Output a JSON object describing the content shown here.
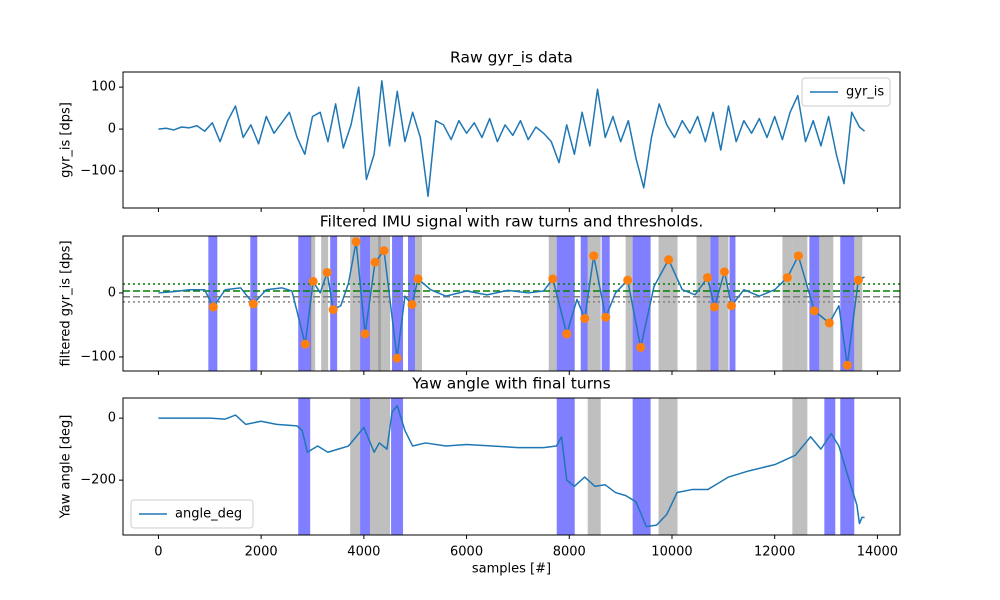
{
  "chart_data": [
    {
      "type": "line",
      "title": "Raw gyr_is data",
      "y_label": "gyr_is [dps]",
      "legend": "upper right",
      "show_xtick_labels": false,
      "xlim": [
        -690,
        14440
      ],
      "xticks": [
        0,
        2000,
        4000,
        6000,
        8000,
        10000,
        12000,
        14000
      ],
      "ylim": [
        -188,
        136
      ],
      "yticks": [
        {
          "value": -100,
          "label": "−100"
        },
        0,
        100
      ],
      "x": [
        0,
        150,
        300,
        450,
        600,
        750,
        900,
        1050,
        1200,
        1350,
        1500,
        1650,
        1800,
        1950,
        2100,
        2250,
        2400,
        2550,
        2700,
        2850,
        3000,
        3150,
        3300,
        3450,
        3600,
        3750,
        3900,
        4050,
        4200,
        4350,
        4500,
        4650,
        4800,
        4950,
        5100,
        5250,
        5400,
        5550,
        5700,
        5850,
        6000,
        6150,
        6300,
        6450,
        6600,
        6750,
        6900,
        7050,
        7200,
        7350,
        7500,
        7650,
        7800,
        7950,
        8100,
        8250,
        8400,
        8550,
        8700,
        8850,
        9000,
        9150,
        9300,
        9450,
        9600,
        9750,
        9900,
        10050,
        10200,
        10350,
        10500,
        10650,
        10800,
        10950,
        11100,
        11250,
        11400,
        11550,
        11700,
        11850,
        12000,
        12150,
        12300,
        12450,
        12600,
        12750,
        12900,
        13050,
        13200,
        13350,
        13500,
        13650,
        13750
      ],
      "series": [
        {
          "name": "gyr_is",
          "color": "#1f77b4",
          "values": [
            0,
            2,
            -2,
            5,
            3,
            8,
            -5,
            15,
            -30,
            20,
            55,
            -20,
            10,
            -35,
            30,
            -10,
            15,
            40,
            -20,
            -60,
            30,
            40,
            -30,
            60,
            -45,
            10,
            100,
            -120,
            -60,
            115,
            -40,
            90,
            -30,
            40,
            -20,
            -160,
            20,
            10,
            -25,
            20,
            -10,
            15,
            -20,
            25,
            -30,
            10,
            -15,
            20,
            -25,
            5,
            -10,
            -30,
            -80,
            10,
            -60,
            40,
            -40,
            95,
            -20,
            30,
            -30,
            20,
            -70,
            -140,
            -20,
            60,
            10,
            -20,
            20,
            -10,
            30,
            -30,
            40,
            -50,
            55,
            -30,
            20,
            -10,
            25,
            -20,
            30,
            -25,
            40,
            80,
            -30,
            20,
            -40,
            30,
            -60,
            -130,
            40,
            5,
            -5
          ]
        }
      ]
    },
    {
      "type": "line",
      "title": "Filtered IMU signal with raw turns and thresholds.",
      "y_label": "filtered gyr_is [dps]",
      "show_xtick_labels": false,
      "xlim": [
        -690,
        14440
      ],
      "xticks": [
        0,
        2000,
        4000,
        6000,
        8000,
        10000,
        12000,
        14000
      ],
      "ylim": [
        -122,
        89
      ],
      "yticks": [
        {
          "value": -100,
          "label": "−100"
        },
        0
      ],
      "x": [
        0,
        300,
        600,
        900,
        1069,
        1300,
        1600,
        1847,
        2100,
        2400,
        2600,
        2858,
        3013,
        3150,
        3285,
        3402,
        3550,
        3700,
        3849,
        4024,
        4218,
        4393,
        4646,
        4800,
        4938,
        5054,
        5300,
        5600,
        6000,
        6400,
        6800,
        7200,
        7500,
        7679,
        7951,
        8150,
        8301,
        8476,
        8709,
        8900,
        9137,
        9390,
        9650,
        9934,
        10200,
        10450,
        10692,
        10828,
        11022,
        11158,
        11400,
        11700,
        12000,
        12247,
        12461,
        12772,
        13064,
        13250,
        13414,
        13628,
        13750
      ],
      "series": [
        {
          "color": "#1f77b4",
          "values": [
            0,
            2,
            5,
            5,
            -22,
            5,
            8,
            -17,
            5,
            8,
            3,
            -80,
            18,
            0,
            32,
            -26,
            -20,
            15,
            80,
            -64,
            48,
            66,
            -102,
            -5,
            -18,
            22,
            5,
            -5,
            3,
            -3,
            4,
            0,
            3,
            22,
            -64,
            -10,
            -40,
            58,
            -38,
            0,
            20,
            -85,
            10,
            52,
            5,
            -3,
            24,
            -22,
            33,
            -20,
            5,
            -5,
            5,
            24,
            58,
            -28,
            -47,
            -20,
            -113,
            20,
            25
          ]
        }
      ],
      "markers": {
        "color": "#ff7f0e",
        "x": [
          1069,
          1847,
          2858,
          3013,
          3285,
          3402,
          3849,
          4024,
          4218,
          4393,
          4646,
          4938,
          5054,
          7679,
          7951,
          8301,
          8476,
          8709,
          9137,
          9390,
          9934,
          10692,
          10828,
          11022,
          11158,
          12247,
          12461,
          12772,
          13064,
          13414,
          13628
        ],
        "values": [
          -22,
          -17,
          -80,
          18,
          32,
          -26,
          80,
          -64,
          48,
          66,
          -102,
          -18,
          22,
          22,
          -64,
          -40,
          58,
          -38,
          20,
          -85,
          52,
          24,
          -22,
          33,
          -20,
          24,
          58,
          -28,
          -47,
          -113,
          20
        ]
      },
      "hlines": [
        {
          "value": 14,
          "color": "green",
          "style": "dotted"
        },
        {
          "value": 3,
          "color": "green",
          "style": "dashed"
        },
        {
          "value": -6,
          "color": "gray",
          "style": "dashed"
        },
        {
          "value": -14,
          "color": "gray",
          "style": "dotted"
        }
      ],
      "span_alpha": 0.5,
      "spans": [
        {
          "start": 972,
          "end": 1147,
          "color": "#0000ff"
        },
        {
          "start": 1789,
          "end": 1925,
          "color": "#0000ff"
        },
        {
          "start": 2722,
          "end": 2975,
          "color": "#0000ff"
        },
        {
          "start": 2955,
          "end": 3052,
          "color": "#808080"
        },
        {
          "start": 3169,
          "end": 3305,
          "color": "#808080"
        },
        {
          "start": 3344,
          "end": 3480,
          "color": "#0000ff"
        },
        {
          "start": 3733,
          "end": 3927,
          "color": "#808080"
        },
        {
          "start": 3927,
          "end": 4121,
          "color": "#0000ff"
        },
        {
          "start": 4121,
          "end": 4330,
          "color": "#808080"
        },
        {
          "start": 4280,
          "end": 4510,
          "color": "#808080"
        },
        {
          "start": 4549,
          "end": 4763,
          "color": "#0000ff"
        },
        {
          "start": 4860,
          "end": 4996,
          "color": "#0000ff"
        },
        {
          "start": 4996,
          "end": 5132,
          "color": "#808080"
        },
        {
          "start": 7600,
          "end": 7756,
          "color": "#808080"
        },
        {
          "start": 7756,
          "end": 8106,
          "color": "#0000ff"
        },
        {
          "start": 8223,
          "end": 8359,
          "color": "#0000ff"
        },
        {
          "start": 8359,
          "end": 8612,
          "color": "#808080"
        },
        {
          "start": 8631,
          "end": 8787,
          "color": "#0000ff"
        },
        {
          "start": 9098,
          "end": 9234,
          "color": "#808080"
        },
        {
          "start": 9234,
          "end": 9584,
          "color": "#0000ff"
        },
        {
          "start": 9739,
          "end": 10108,
          "color": "#808080"
        },
        {
          "start": 10478,
          "end": 10750,
          "color": "#808080"
        },
        {
          "start": 10750,
          "end": 10906,
          "color": "#0000ff"
        },
        {
          "start": 10906,
          "end": 11100,
          "color": "#808080"
        },
        {
          "start": 11120,
          "end": 11236,
          "color": "#0000ff"
        },
        {
          "start": 12150,
          "end": 12344,
          "color": "#808080"
        },
        {
          "start": 12344,
          "end": 12636,
          "color": "#808080"
        },
        {
          "start": 12675,
          "end": 12869,
          "color": "#0000ff"
        },
        {
          "start": 12869,
          "end": 13141,
          "color": "#808080"
        },
        {
          "start": 13277,
          "end": 13550,
          "color": "#0000ff"
        },
        {
          "start": 13550,
          "end": 13705,
          "color": "#808080"
        }
      ]
    },
    {
      "type": "line",
      "title": "Yaw angle with final turns",
      "y_label": "Yaw angle [deg]",
      "x_label": "samples [#]",
      "legend": "lower left",
      "show_xtick_labels": true,
      "xlim": [
        -690,
        14440
      ],
      "xticks": [
        0,
        2000,
        4000,
        6000,
        8000,
        10000,
        12000,
        14000
      ],
      "ylim": [
        -377,
        65
      ],
      "yticks": [
        {
          "value": -200,
          "label": "−200"
        },
        0
      ],
      "x": [
        0,
        1000,
        1300,
        1500,
        1700,
        2000,
        2300,
        2700,
        2800,
        2900,
        3100,
        3300,
        3500,
        3700,
        3850,
        4000,
        4100,
        4200,
        4300,
        4450,
        4550,
        4650,
        4800,
        4950,
        5200,
        5600,
        6000,
        6500,
        7000,
        7500,
        7750,
        7850,
        7950,
        8100,
        8300,
        8500,
        8700,
        8900,
        9100,
        9300,
        9500,
        9700,
        9900,
        10100,
        10400,
        10700,
        10900,
        11100,
        11500,
        12000,
        12400,
        12600,
        12700,
        12900,
        13100,
        13250,
        13450,
        13600,
        13650,
        13700,
        13750
      ],
      "series": [
        {
          "name": "angle_deg",
          "color": "#1f77b4",
          "values": [
            0,
            0,
            -3,
            10,
            -20,
            -10,
            -20,
            -25,
            -40,
            -110,
            -90,
            -110,
            -100,
            -90,
            -60,
            -30,
            -70,
            -110,
            -80,
            -100,
            20,
            40,
            -40,
            -90,
            -80,
            -90,
            -85,
            -90,
            -95,
            -95,
            -90,
            -60,
            -200,
            -220,
            -190,
            -220,
            -215,
            -240,
            -250,
            -270,
            -350,
            -345,
            -310,
            -240,
            -230,
            -230,
            -210,
            -190,
            -170,
            -150,
            -120,
            -80,
            -60,
            -100,
            -50,
            -90,
            -200,
            -280,
            -340,
            -320,
            -320
          ]
        }
      ],
      "span_alpha": 0.5,
      "spans": [
        {
          "start": 2722,
          "end": 2955,
          "color": "#0000ff"
        },
        {
          "start": 3733,
          "end": 3927,
          "color": "#808080"
        },
        {
          "start": 3927,
          "end": 4121,
          "color": "#0000ff"
        },
        {
          "start": 4121,
          "end": 4510,
          "color": "#808080"
        },
        {
          "start": 4530,
          "end": 4763,
          "color": "#0000ff"
        },
        {
          "start": 7756,
          "end": 8106,
          "color": "#0000ff"
        },
        {
          "start": 8359,
          "end": 8612,
          "color": "#808080"
        },
        {
          "start": 9234,
          "end": 9584,
          "color": "#0000ff"
        },
        {
          "start": 9739,
          "end": 10108,
          "color": "#808080"
        },
        {
          "start": 12344,
          "end": 12636,
          "color": "#808080"
        },
        {
          "start": 12967,
          "end": 13180,
          "color": "#0000ff"
        },
        {
          "start": 13277,
          "end": 13550,
          "color": "#0000ff"
        }
      ]
    }
  ]
}
